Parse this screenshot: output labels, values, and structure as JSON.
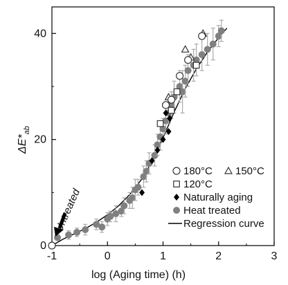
{
  "chart_data": {
    "type": "scatter",
    "xlabel": "log (Aging time) (h)",
    "ylabel_main": "ΔE*",
    "ylabel_sub": "ab",
    "xlim": [
      -1,
      3
    ],
    "ylim": [
      0,
      45
    ],
    "x_ticks": [
      -1,
      0,
      1,
      2,
      3
    ],
    "x_tick_labels": [
      "-1",
      "0",
      "1",
      "2",
      "3"
    ],
    "y_ticks": [
      0,
      20,
      40
    ],
    "y_tick_labels": [
      "0",
      "20",
      "40"
    ],
    "grid": false,
    "legend_position": "lower-right",
    "annotation": {
      "text": "Untreated",
      "point": [
        -1,
        0
      ]
    },
    "series": [
      {
        "name": "180°C",
        "marker": "open-circle",
        "color": "#333333",
        "points": [
          [
            -1,
            0
          ],
          [
            1.05,
            26.5
          ],
          [
            1.15,
            27.5
          ],
          [
            1.3,
            32
          ],
          [
            1.45,
            35
          ],
          [
            1.7,
            39.5
          ]
        ]
      },
      {
        "name": "150°C",
        "marker": "open-triangle",
        "color": "#333333",
        "points": [
          [
            1.1,
            28
          ],
          [
            1.4,
            37
          ],
          [
            1.5,
            35.5
          ],
          [
            1.72,
            40
          ]
        ]
      },
      {
        "name": "120°C",
        "marker": "open-square",
        "color": "#333333",
        "points": [
          [
            0.95,
            23
          ],
          [
            1.15,
            25.5
          ],
          [
            1.25,
            29
          ],
          [
            1.6,
            34
          ]
        ]
      },
      {
        "name": "Naturally aging",
        "marker": "filled-diamond",
        "color": "#000000",
        "points": [
          [
            0.62,
            10
          ],
          [
            0.8,
            16
          ],
          [
            0.9,
            18
          ],
          [
            1.0,
            20
          ],
          [
            1.05,
            25
          ],
          [
            1.1,
            21.5
          ],
          [
            1.12,
            24
          ]
        ]
      },
      {
        "name": "Heat treated",
        "marker": "filled-circle",
        "color": "#808080",
        "points": [
          [
            -0.9,
            1.5
          ],
          [
            -0.7,
            2
          ],
          [
            -0.55,
            2.5
          ],
          [
            -0.4,
            3
          ],
          [
            -0.2,
            4
          ],
          [
            -0.1,
            3.5
          ],
          [
            0.0,
            5
          ],
          [
            0.05,
            5.5
          ],
          [
            0.15,
            6
          ],
          [
            0.25,
            6.5
          ],
          [
            0.3,
            7.5
          ],
          [
            0.4,
            8.5
          ],
          [
            0.45,
            9
          ],
          [
            0.5,
            10.5
          ],
          [
            0.55,
            11
          ],
          [
            0.65,
            13
          ],
          [
            0.7,
            14
          ],
          [
            0.75,
            15.5
          ],
          [
            0.85,
            17
          ],
          [
            0.9,
            19
          ],
          [
            0.95,
            20.5
          ],
          [
            1.0,
            22
          ],
          [
            1.05,
            23.5
          ],
          [
            1.1,
            25
          ],
          [
            1.15,
            26.5
          ],
          [
            1.2,
            28
          ],
          [
            1.3,
            30
          ],
          [
            1.35,
            29
          ],
          [
            1.4,
            31
          ],
          [
            1.45,
            33
          ],
          [
            1.55,
            34
          ],
          [
            1.6,
            35
          ],
          [
            1.7,
            36
          ],
          [
            1.8,
            37
          ],
          [
            1.9,
            38
          ],
          [
            2.0,
            39.5
          ],
          [
            2.05,
            40.5
          ]
        ],
        "error": [
          0.5,
          0.8,
          0.8,
          1,
          1,
          1,
          1.2,
          1,
          1.5,
          1,
          1.5,
          1.5,
          2,
          2,
          1.5,
          2,
          2,
          2,
          2,
          2,
          2.5,
          2,
          2.5,
          2,
          2.5,
          3,
          3,
          4,
          3,
          3,
          3,
          3,
          3,
          3,
          3,
          2,
          2
        ]
      },
      {
        "name": "Regression curve",
        "marker": "line",
        "color": "#000000",
        "points": [
          [
            -1,
            0
          ],
          [
            -0.8,
            1.2
          ],
          [
            -0.6,
            2.2
          ],
          [
            -0.4,
            3.2
          ],
          [
            -0.2,
            4.4
          ],
          [
            0,
            5.8
          ],
          [
            0.2,
            7.5
          ],
          [
            0.4,
            9.6
          ],
          [
            0.6,
            12.3
          ],
          [
            0.8,
            15.8
          ],
          [
            1.0,
            20.3
          ],
          [
            1.2,
            25.2
          ],
          [
            1.4,
            29.6
          ],
          [
            1.6,
            33.3
          ],
          [
            1.8,
            36.5
          ],
          [
            2.0,
            39.2
          ],
          [
            2.15,
            41
          ]
        ]
      }
    ]
  }
}
